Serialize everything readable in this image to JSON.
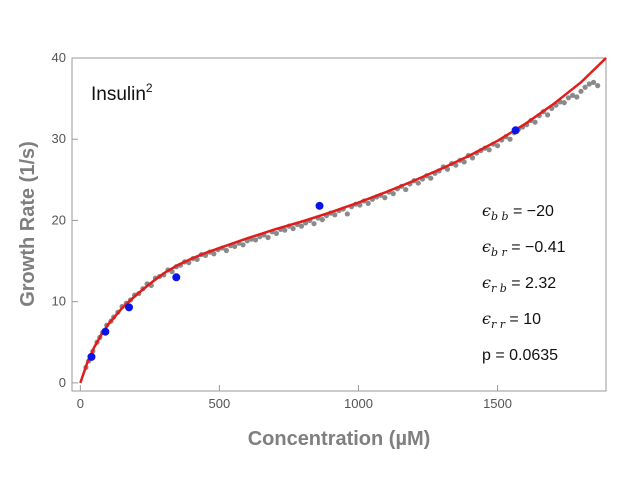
{
  "chart_data": {
    "type": "scatter",
    "title": "",
    "xlabel": "Concentration (µM)",
    "ylabel": "Growth Rate (1/s)",
    "xlim": [
      -30,
      1890
    ],
    "ylim": [
      -1,
      40
    ],
    "x_ticks": [
      0,
      500,
      1000,
      1500
    ],
    "y_ticks": [
      0,
      10,
      20,
      30,
      40
    ],
    "grid": false,
    "frame": true,
    "inset_label": {
      "base": "Insulin",
      "sup": "2"
    },
    "annotations": [
      {
        "symbol": "ϵ",
        "sub": "b b",
        "value": " = −20"
      },
      {
        "symbol": "ϵ",
        "sub": "b r",
        "value": " = −0.41"
      },
      {
        "symbol": "ϵ",
        "sub": "r b",
        "value": " = 2.32"
      },
      {
        "symbol": "ϵ",
        "sub": "r r",
        "value": " = 10"
      },
      {
        "symbol": "",
        "sub": "",
        "value": "p = 0.0635"
      }
    ],
    "colors": {
      "fit": "#e21b1b",
      "measured": "#0a14e6",
      "simulated": "#8a8a8a"
    },
    "series": [
      {
        "type": "line",
        "x": [
          0,
          25,
          50,
          75,
          100,
          125,
          150,
          175,
          200,
          250,
          300,
          350,
          400,
          450,
          500,
          600,
          700,
          800,
          900,
          1000,
          1100,
          1200,
          1300,
          1400,
          1500,
          1600,
          1700,
          1800,
          1890
        ],
        "y": [
          0,
          2.5,
          4.4,
          5.9,
          7.2,
          8.2,
          9.2,
          10.0,
          10.8,
          12.2,
          13.5,
          14.5,
          15.3,
          16.0,
          16.6,
          17.8,
          18.9,
          19.9,
          21.0,
          22.2,
          23.5,
          24.9,
          26.4,
          28.0,
          29.8,
          31.9,
          34.3,
          37.0,
          40.0
        ]
      },
      {
        "type": "scatter",
        "x": [
          40,
          90,
          175,
          345,
          860,
          1565
        ],
        "y": [
          3.2,
          6.3,
          9.3,
          13.0,
          21.8,
          31.1
        ]
      },
      {
        "type": "scatter",
        "x": [
          20,
          30,
          45,
          60,
          70,
          80,
          95,
          110,
          120,
          135,
          150,
          165,
          180,
          195,
          210,
          225,
          240,
          255,
          270,
          285,
          300,
          315,
          330,
          345,
          360,
          375,
          390,
          405,
          420,
          435,
          450,
          465,
          480,
          495,
          510,
          525,
          540,
          555,
          570,
          585,
          600,
          615,
          630,
          645,
          660,
          675,
          690,
          705,
          720,
          735,
          750,
          765,
          780,
          795,
          810,
          825,
          840,
          855,
          870,
          885,
          900,
          915,
          930,
          945,
          960,
          975,
          990,
          1005,
          1020,
          1035,
          1050,
          1065,
          1080,
          1095,
          1110,
          1125,
          1140,
          1155,
          1170,
          1185,
          1200,
          1215,
          1230,
          1245,
          1260,
          1275,
          1290,
          1305,
          1320,
          1335,
          1350,
          1365,
          1380,
          1395,
          1410,
          1425,
          1440,
          1455,
          1470,
          1485,
          1500,
          1515,
          1530,
          1545,
          1560,
          1575,
          1590,
          1605,
          1620,
          1635,
          1650,
          1665,
          1680,
          1695,
          1710,
          1725,
          1740,
          1755,
          1770,
          1785,
          1800,
          1815,
          1830,
          1845,
          1860
        ],
        "y": [
          1.9,
          2.7,
          3.9,
          5.0,
          5.6,
          6.2,
          7.1,
          7.6,
          8.1,
          8.7,
          9.4,
          9.8,
          10.2,
          10.8,
          11.0,
          11.6,
          12.2,
          12.0,
          12.9,
          13.1,
          13.3,
          13.9,
          13.7,
          14.3,
          14.5,
          14.9,
          14.8,
          15.3,
          15.2,
          15.8,
          15.7,
          16.1,
          15.9,
          16.4,
          16.6,
          16.3,
          16.9,
          16.8,
          17.2,
          17.0,
          17.5,
          17.7,
          17.6,
          18.0,
          18.2,
          17.9,
          18.6,
          18.4,
          18.9,
          18.8,
          19.3,
          19.0,
          19.5,
          19.3,
          19.7,
          20.0,
          19.6,
          20.3,
          20.1,
          20.6,
          20.9,
          20.7,
          21.2,
          21.4,
          20.8,
          21.7,
          22.0,
          21.9,
          22.4,
          22.1,
          22.6,
          22.9,
          23.1,
          22.8,
          23.5,
          23.3,
          23.9,
          24.2,
          23.8,
          24.5,
          24.9,
          24.6,
          25.1,
          25.5,
          25.2,
          25.8,
          26.1,
          26.6,
          26.3,
          27.0,
          26.8,
          27.4,
          27.2,
          28.0,
          27.7,
          28.3,
          28.6,
          28.9,
          28.7,
          29.4,
          29.2,
          29.9,
          30.3,
          30.0,
          30.8,
          31.2,
          31.5,
          31.8,
          32.3,
          32.1,
          32.9,
          33.4,
          33.0,
          33.8,
          34.2,
          34.6,
          34.5,
          35.1,
          35.4,
          35.2,
          35.9,
          36.4,
          36.8,
          37.0,
          36.6
        ]
      }
    ]
  }
}
